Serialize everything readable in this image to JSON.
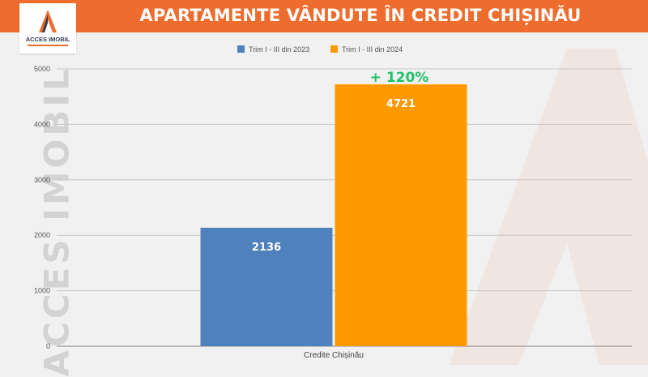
{
  "header": {
    "title": "APARTAMENTE VÂNDUTE ÎN CREDIT CHIȘINĂU",
    "logo_text": "ACCES IMOBIL",
    "watermark_text": "ACCES IMOBIL"
  },
  "colors": {
    "header_bg": "#ee6c2d",
    "series_2023": "#4f81bd",
    "series_2024": "#ff9900",
    "growth_label": "#1fc26a"
  },
  "chart_data": {
    "type": "bar",
    "categories": [
      "Credite Chișinău"
    ],
    "series": [
      {
        "name": "Trim I - III din 2023",
        "values": [
          2136
        ],
        "color": "#4f81bd"
      },
      {
        "name": "Trim I - III din 2024",
        "values": [
          4721
        ],
        "color": "#ff9900"
      }
    ],
    "y_ticks": [
      "0",
      "1000",
      "2000",
      "3000",
      "4000",
      "5000"
    ],
    "ylim": [
      0,
      5000
    ],
    "grid": true,
    "legend_position": "top",
    "data_labels": [
      "2136",
      "4721"
    ],
    "annotation": "+ 120%"
  }
}
